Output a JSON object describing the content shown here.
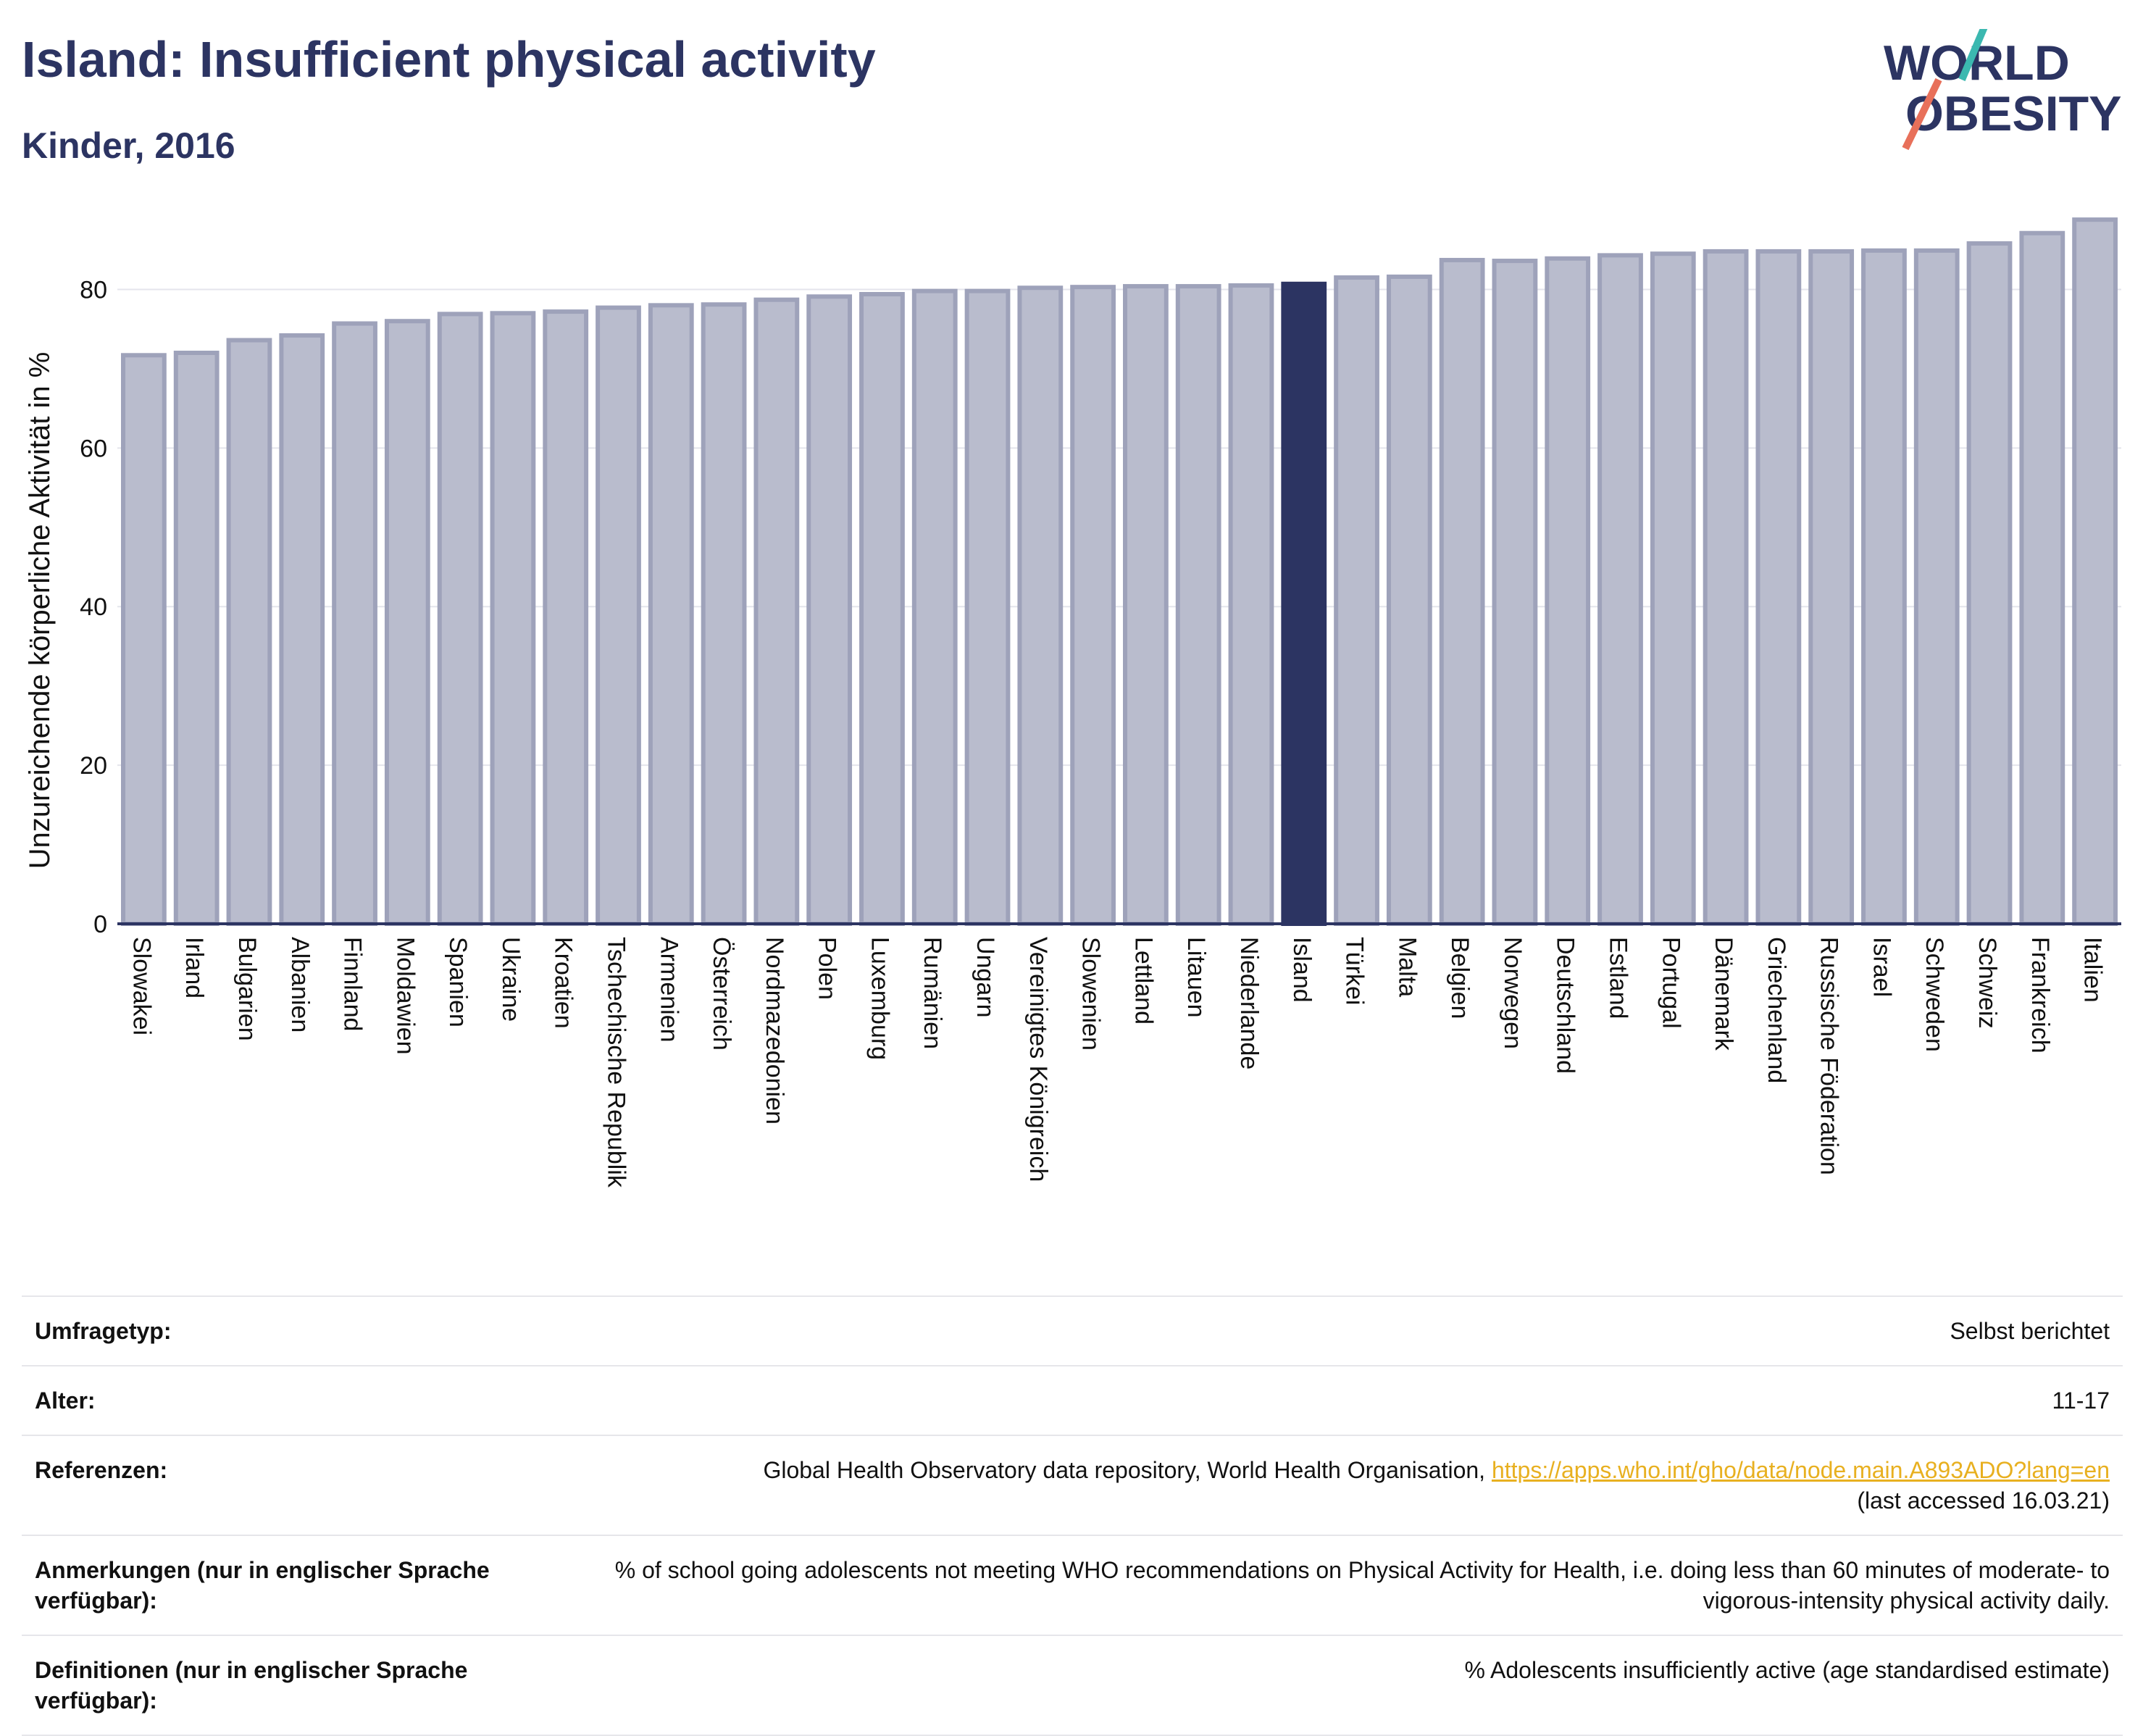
{
  "header": {
    "title": "Island: Insufficient physical activity",
    "subtitle": "Kinder, 2016",
    "logo_line1": "WORLD",
    "logo_line2": "OBESITY"
  },
  "colors": {
    "bar": "#b9bccd",
    "bar_stroke": "#9ea2ba",
    "highlight": "#2c3462",
    "text": "#2c3462",
    "link": "#e8b020",
    "logo_slash_teal": "#3bb8b0",
    "logo_slash_red": "#e8705a"
  },
  "chart_data": {
    "type": "bar",
    "ylabel": "Unzureichende körperliche Aktivität in %",
    "ylim": [
      0,
      90
    ],
    "yticks": [
      0,
      20,
      40,
      60,
      80
    ],
    "grid": true,
    "highlight": "Island",
    "categories": [
      "Slowakei",
      "Irland",
      "Bulgarien",
      "Albanien",
      "Finnland",
      "Moldawien",
      "Spanien",
      "Ukraine",
      "Kroatien",
      "Tschechische Republik",
      "Armenien",
      "Österreich",
      "Nordmazedonien",
      "Polen",
      "Luxemburg",
      "Rumänien",
      "Ungarn",
      "Vereinigtes Königreich",
      "Slowenien",
      "Lettland",
      "Litauen",
      "Niederlande",
      "Island",
      "Türkei",
      "Malta",
      "Belgien",
      "Norwegen",
      "Deutschland",
      "Estland",
      "Portugal",
      "Dänemark",
      "Griechenland",
      "Russische Föderation",
      "Israel",
      "Schweden",
      "Schweiz",
      "Frankreich",
      "Italien"
    ],
    "values": [
      71.7,
      72.0,
      73.6,
      74.2,
      75.7,
      76.0,
      76.9,
      77.0,
      77.2,
      77.7,
      78.0,
      78.1,
      78.7,
      79.1,
      79.4,
      79.8,
      79.8,
      80.2,
      80.3,
      80.4,
      80.4,
      80.5,
      80.7,
      81.5,
      81.6,
      83.7,
      83.6,
      83.9,
      84.3,
      84.5,
      84.8,
      84.8,
      84.8,
      84.9,
      84.9,
      85.8,
      87.1,
      88.8
    ]
  },
  "info": {
    "survey_type_label": "Umfragetyp:",
    "survey_type_value": "Selbst berichtet",
    "age_label": "Alter:",
    "age_value": "11-17",
    "references_label": "Referenzen:",
    "references_text": "Global Health Observatory data repository, World Health Organisation, ",
    "references_link": "https://apps.who.int/gho/data/node.main.A893ADO?lang=en",
    "references_accessed": "(last accessed 16.03.21)",
    "notes_label": "Anmerkungen (nur in englischer Sprache verfügbar):",
    "notes_value": "% of school going adolescents not meeting WHO recommendations on Physical Activity for Health, i.e. doing less than 60 minutes of moderate- to vigorous-intensity physical activity daily.",
    "definitions_label": "Definitionen (nur in englischer Sprache verfügbar):",
    "definitions_value": "% Adolescents insufficiently active (age standardised estimate)"
  }
}
